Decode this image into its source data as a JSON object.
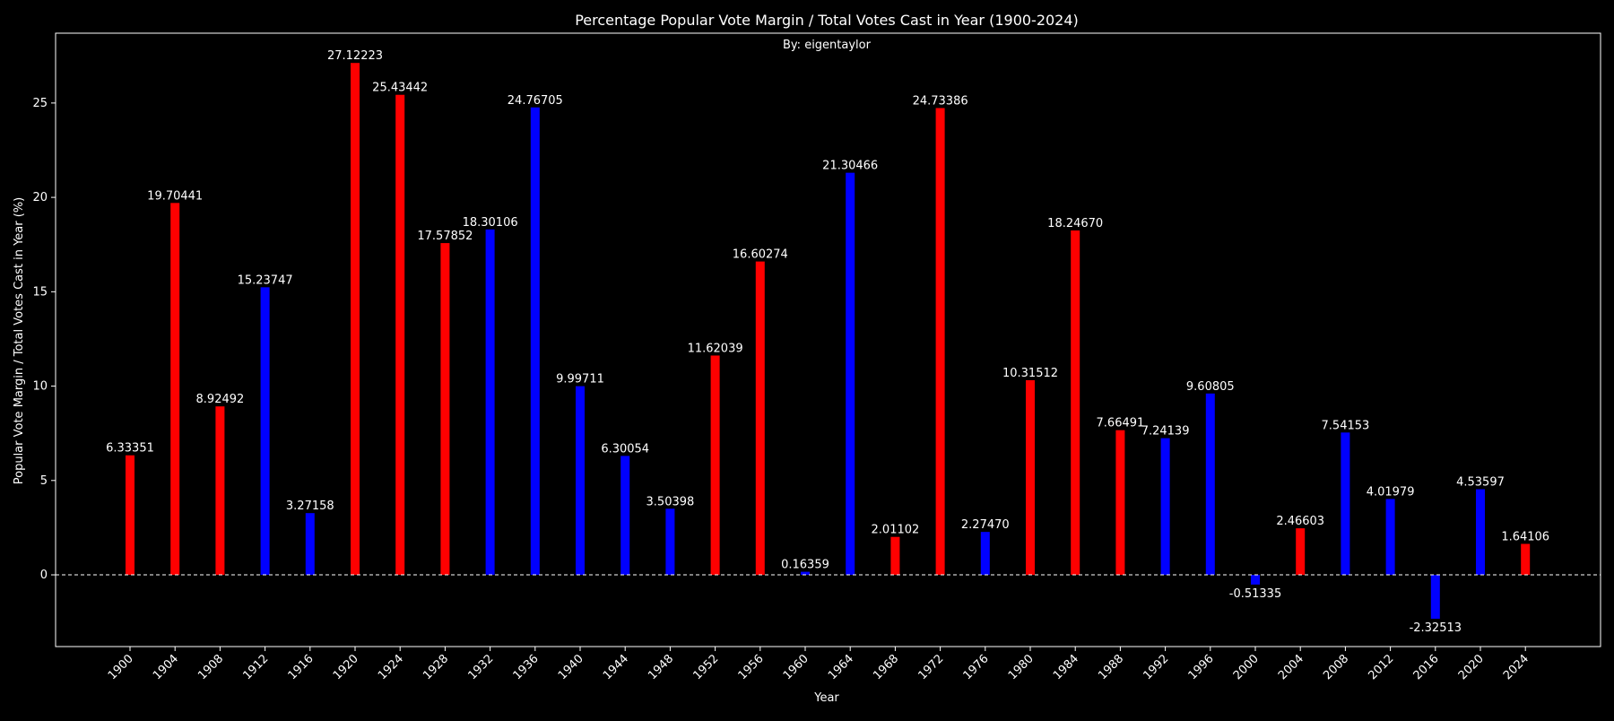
{
  "chart_data": {
    "type": "bar",
    "title": "Percentage Popular Vote Margin / Total Votes Cast in Year (1900-2024)",
    "subtitle": "By: eigentaylor",
    "xlabel": "Year",
    "ylabel": "Popular Vote Margin / Total Votes Cast in Year (%)",
    "ylim": [
      -3.8,
      28.7
    ],
    "yticks": [
      0,
      5,
      10,
      15,
      20,
      25
    ],
    "grid": false,
    "zero_line": true,
    "colors": {
      "red": "#ff0000",
      "blue": "#0000ff",
      "background": "#000000",
      "text": "#ffffff"
    },
    "categories": [
      "1900",
      "1904",
      "1908",
      "1912",
      "1916",
      "1920",
      "1924",
      "1928",
      "1932",
      "1936",
      "1940",
      "1944",
      "1948",
      "1952",
      "1956",
      "1960",
      "1964",
      "1968",
      "1972",
      "1976",
      "1980",
      "1984",
      "1988",
      "1992",
      "1996",
      "2000",
      "2004",
      "2008",
      "2012",
      "2016",
      "2020",
      "2024"
    ],
    "values": [
      6.33351,
      19.70441,
      8.92492,
      15.23747,
      3.27158,
      27.12223,
      25.43442,
      17.57852,
      18.30106,
      24.76705,
      9.99711,
      6.30054,
      3.50398,
      11.62039,
      16.60274,
      0.16359,
      21.30466,
      2.01102,
      24.73386,
      2.2747,
      10.31512,
      18.2467,
      7.66491,
      7.24139,
      9.60805,
      -0.51335,
      2.46603,
      7.54153,
      4.01979,
      -2.32513,
      4.53597,
      1.64106
    ],
    "labels": [
      "6.33351",
      "19.70441",
      "8.92492",
      "15.23747",
      "3.27158",
      "27.12223",
      "25.43442",
      "17.57852",
      "18.30106",
      "24.76705",
      "9.99711",
      "6.30054",
      "3.50398",
      "11.62039",
      "16.60274",
      "0.16359",
      "21.30466",
      "2.01102",
      "24.73386",
      "2.27470",
      "10.31512",
      "18.24670",
      "7.66491",
      "7.24139",
      "9.60805",
      "-0.51335",
      "2.46603",
      "7.54153",
      "4.01979",
      "-2.32513",
      "4.53597",
      "1.64106"
    ],
    "bar_colors": [
      "red",
      "red",
      "red",
      "blue",
      "blue",
      "red",
      "red",
      "red",
      "blue",
      "blue",
      "blue",
      "blue",
      "blue",
      "red",
      "red",
      "blue",
      "blue",
      "red",
      "red",
      "blue",
      "red",
      "red",
      "red",
      "blue",
      "blue",
      "blue",
      "red",
      "blue",
      "blue",
      "blue",
      "blue",
      "red"
    ]
  }
}
